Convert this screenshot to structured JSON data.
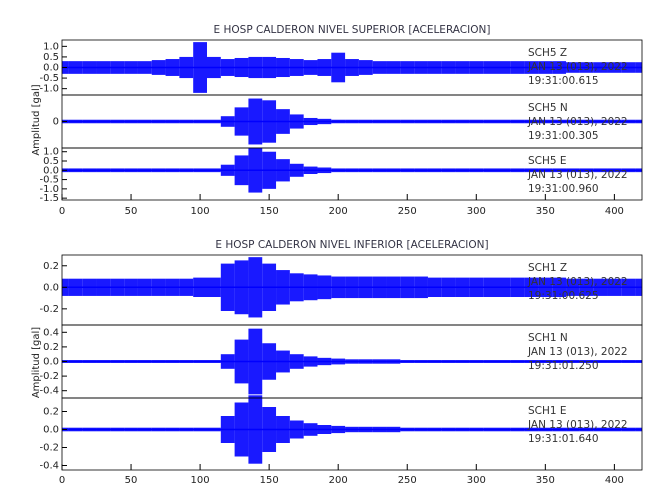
{
  "chart_data": [
    {
      "type": "seismogram",
      "title": "E HOSP CALDERON NIVEL SUPERIOR [ACELERACION]",
      "ylabel": "Amplitud [gal]",
      "color": "#0000ff",
      "xlim": [
        0,
        420
      ],
      "xticks": [
        0,
        50,
        100,
        150,
        200,
        250,
        300,
        350,
        400
      ],
      "x": [
        0,
        10,
        20,
        30,
        40,
        50,
        60,
        70,
        80,
        90,
        100,
        110,
        120,
        130,
        140,
        150,
        160,
        170,
        180,
        190,
        200,
        210,
        220,
        230,
        240,
        250,
        260,
        270,
        280,
        290,
        300,
        310,
        320,
        330,
        340,
        350,
        360,
        370,
        380,
        390,
        400,
        410,
        420
      ],
      "panels": [
        {
          "ylim": [
            -1.3,
            1.3
          ],
          "yticks": [
            {
              "value": 1.0,
              "label": "1.0"
            },
            {
              "value": 0.5,
              "label": "0.5"
            },
            {
              "value": 0.0,
              "label": "0.0"
            },
            {
              "value": -0.5,
              "label": "-0.5"
            },
            {
              "value": -1.0,
              "label": "-1.0"
            }
          ],
          "values": [
            0.3,
            0.3,
            0.3,
            0.3,
            0.3,
            0.3,
            0.3,
            0.35,
            0.4,
            0.5,
            1.2,
            0.5,
            0.4,
            0.45,
            0.5,
            0.5,
            0.45,
            0.4,
            0.35,
            0.4,
            0.7,
            0.4,
            0.35,
            0.3,
            0.3,
            0.3,
            0.3,
            0.3,
            0.3,
            0.3,
            0.3,
            0.3,
            0.3,
            0.3,
            0.3,
            0.3,
            0.3,
            0.25,
            0.25,
            0.25,
            0.25,
            0.25,
            0.25
          ],
          "annotations": [
            "SCH5 Z",
            "JAN 13 (013), 2022",
            "19:31:00.615"
          ]
        },
        {
          "ylim": [
            -1.5,
            1.5
          ],
          "yticks": [
            0
          ],
          "values": [
            0.1,
            0.1,
            0.1,
            0.1,
            0.1,
            0.1,
            0.1,
            0.1,
            0.1,
            0.1,
            0.1,
            0.1,
            0.3,
            0.8,
            1.3,
            1.2,
            0.7,
            0.4,
            0.2,
            0.15,
            0.1,
            0.1,
            0.1,
            0.1,
            0.1,
            0.1,
            0.1,
            0.1,
            0.1,
            0.1,
            0.1,
            0.1,
            0.1,
            0.1,
            0.1,
            0.1,
            0.1,
            0.1,
            0.1,
            0.1,
            0.1,
            0.1,
            0.1
          ],
          "annotations": [
            "SCH5 N",
            "JAN 13 (013), 2022",
            "19:31:00.305"
          ]
        },
        {
          "ylim": [
            -1.6,
            1.2
          ],
          "yticks": [
            {
              "value": 1.0,
              "label": "1.0"
            },
            {
              "value": 0.5,
              "label": "0.5"
            },
            {
              "value": 0.0,
              "label": "0.0"
            },
            {
              "value": -0.5,
              "label": "-0.5"
            },
            {
              "value": -1.0,
              "label": "-1.0"
            },
            {
              "value": -1.5,
              "label": "-1.5"
            }
          ],
          "values": [
            0.1,
            0.1,
            0.1,
            0.1,
            0.1,
            0.1,
            0.1,
            0.1,
            0.1,
            0.1,
            0.1,
            0.1,
            0.3,
            0.8,
            1.2,
            1.0,
            0.6,
            0.35,
            0.2,
            0.15,
            0.1,
            0.1,
            0.1,
            0.1,
            0.1,
            0.1,
            0.1,
            0.1,
            0.1,
            0.1,
            0.1,
            0.1,
            0.1,
            0.1,
            0.1,
            0.1,
            0.1,
            0.1,
            0.1,
            0.1,
            0.1,
            0.1,
            0.1
          ],
          "annotations": [
            "SCH5 E",
            "JAN 13 (013), 2022",
            "19:31:00.960"
          ]
        }
      ]
    },
    {
      "type": "seismogram",
      "title": "E HOSP CALDERON NIVEL INFERIOR [ACELERACION]",
      "ylabel": "Amplitud [gal]",
      "color": "#0000ff",
      "xlim": [
        0,
        420
      ],
      "xticks": [
        0,
        50,
        100,
        150,
        200,
        250,
        300,
        350,
        400
      ],
      "x": [
        0,
        10,
        20,
        30,
        40,
        50,
        60,
        70,
        80,
        90,
        100,
        110,
        120,
        130,
        140,
        150,
        160,
        170,
        180,
        190,
        200,
        210,
        220,
        230,
        240,
        250,
        260,
        270,
        280,
        290,
        300,
        310,
        320,
        330,
        340,
        350,
        360,
        370,
        380,
        390,
        400,
        410,
        420
      ],
      "panels": [
        {
          "ylim": [
            -0.35,
            0.3
          ],
          "yticks": [
            0.2,
            {
              "value": 0.0,
              "label": "0.0"
            },
            -0.2
          ],
          "values": [
            0.08,
            0.08,
            0.08,
            0.08,
            0.08,
            0.08,
            0.08,
            0.08,
            0.08,
            0.08,
            0.09,
            0.09,
            0.22,
            0.25,
            0.28,
            0.22,
            0.16,
            0.13,
            0.12,
            0.11,
            0.1,
            0.1,
            0.1,
            0.1,
            0.1,
            0.1,
            0.1,
            0.09,
            0.09,
            0.09,
            0.09,
            0.09,
            0.09,
            0.09,
            0.09,
            0.09,
            0.09,
            0.08,
            0.08,
            0.08,
            0.08,
            0.08,
            0.08
          ],
          "annotations": [
            "SCH1 Z",
            "JAN 13 (013), 2022",
            "19:31:00.625"
          ]
        },
        {
          "ylim": [
            -0.5,
            0.5
          ],
          "yticks": [
            0.4,
            0.2,
            {
              "value": 0.0,
              "label": "0.0"
            },
            -0.2,
            -0.4
          ],
          "values": [
            0.02,
            0.02,
            0.02,
            0.02,
            0.02,
            0.02,
            0.02,
            0.02,
            0.02,
            0.02,
            0.02,
            0.02,
            0.1,
            0.3,
            0.45,
            0.25,
            0.15,
            0.1,
            0.07,
            0.05,
            0.04,
            0.03,
            0.03,
            0.03,
            0.03,
            0.02,
            0.02,
            0.02,
            0.02,
            0.02,
            0.02,
            0.02,
            0.02,
            0.02,
            0.02,
            0.02,
            0.02,
            0.02,
            0.02,
            0.02,
            0.02,
            0.02,
            0.02
          ],
          "annotations": [
            "SCH1 N",
            "JAN 13 (013), 2022",
            "19:31:01.250"
          ]
        },
        {
          "ylim": [
            -0.45,
            0.35
          ],
          "yticks": [
            0.2,
            {
              "value": 0.0,
              "label": "0.0"
            },
            -0.2,
            -0.4
          ],
          "values": [
            0.02,
            0.02,
            0.02,
            0.02,
            0.02,
            0.02,
            0.02,
            0.02,
            0.02,
            0.02,
            0.02,
            0.02,
            0.15,
            0.3,
            0.38,
            0.25,
            0.15,
            0.1,
            0.07,
            0.05,
            0.04,
            0.03,
            0.03,
            0.03,
            0.03,
            0.02,
            0.02,
            0.02,
            0.02,
            0.02,
            0.02,
            0.02,
            0.02,
            0.02,
            0.02,
            0.02,
            0.02,
            0.02,
            0.02,
            0.02,
            0.02,
            0.02,
            0.02
          ],
          "annotations": [
            "SCH1 E",
            "JAN 13 (013), 2022",
            "19:31:01.640"
          ]
        }
      ]
    }
  ]
}
